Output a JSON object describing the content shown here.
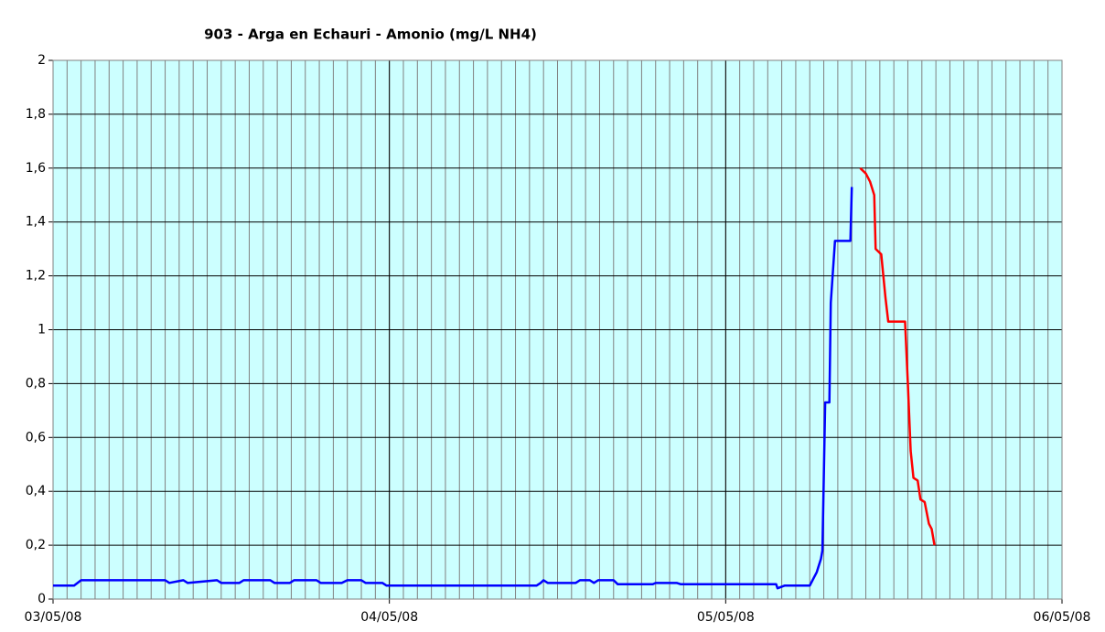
{
  "chart_data": {
    "type": "line",
    "title": "903 - Arga en Echauri - Amonio (mg/L NH4)",
    "xlim": [
      0,
      72
    ],
    "xticks": [
      {
        "value": 0,
        "label": "03/05/08"
      },
      {
        "value": 24,
        "label": "04/05/08"
      },
      {
        "value": 48,
        "label": "05/05/08"
      },
      {
        "value": 72,
        "label": "06/05/08"
      }
    ],
    "minor_grid_step": 1,
    "ylim": [
      0,
      2
    ],
    "yticks": [
      0,
      {
        "value": 0.2,
        "label": "0,2"
      },
      {
        "value": 0.4,
        "label": "0,4"
      },
      {
        "value": 0.6,
        "label": "0,6"
      },
      {
        "value": 0.8,
        "label": "0,8"
      },
      1,
      {
        "value": 1.2,
        "label": "1,2"
      },
      {
        "value": 1.4,
        "label": "1,4"
      },
      {
        "value": 1.6,
        "label": "1,6"
      },
      {
        "value": 1.8,
        "label": "1,8"
      },
      2
    ],
    "grid": true,
    "background": "#ccffff",
    "series": [
      {
        "color": "#0000ff",
        "x": [
          0,
          1.5,
          2,
          8,
          8.3,
          9.3,
          9.6,
          11.7,
          12,
          13.3,
          13.6,
          15.5,
          15.8,
          16.9,
          17.2,
          18.8,
          19.1,
          20.6,
          21,
          22,
          22.3,
          23.5,
          23.8,
          34.5,
          34.8,
          35,
          35.3,
          37.3,
          37.6,
          38.3,
          38.6,
          38.9,
          40,
          40.3,
          42.8,
          43,
          44.5,
          44.8,
          51.6,
          51.7,
          52.2,
          54.0,
          54.5,
          54.8,
          54.9,
          55.0,
          55.1,
          55.4,
          55.5,
          55.8,
          56.9,
          57.0
        ],
        "values": [
          0.05,
          0.05,
          0.07,
          0.07,
          0.06,
          0.07,
          0.06,
          0.07,
          0.06,
          0.06,
          0.07,
          0.07,
          0.06,
          0.06,
          0.07,
          0.07,
          0.06,
          0.06,
          0.07,
          0.07,
          0.06,
          0.06,
          0.05,
          0.05,
          0.06,
          0.07,
          0.06,
          0.06,
          0.07,
          0.07,
          0.06,
          0.07,
          0.07,
          0.055,
          0.055,
          0.06,
          0.06,
          0.055,
          0.055,
          0.04,
          0.05,
          0.05,
          0.1,
          0.15,
          0.18,
          0.45,
          0.73,
          0.73,
          1.1,
          1.33,
          1.33,
          1.53
        ]
      },
      {
        "color": "#ff0000",
        "x": [
          57.6,
          58,
          58.3,
          58.6,
          58.7,
          59.1,
          59.4,
          59.6,
          60.8,
          61.0,
          61.2,
          61.4,
          61.7,
          61.9,
          62.2,
          62.5,
          62.7,
          62.9
        ],
        "values": [
          1.6,
          1.58,
          1.55,
          1.5,
          1.3,
          1.28,
          1.12,
          1.03,
          1.03,
          0.8,
          0.55,
          0.45,
          0.44,
          0.37,
          0.36,
          0.28,
          0.26,
          0.2
        ]
      }
    ]
  }
}
